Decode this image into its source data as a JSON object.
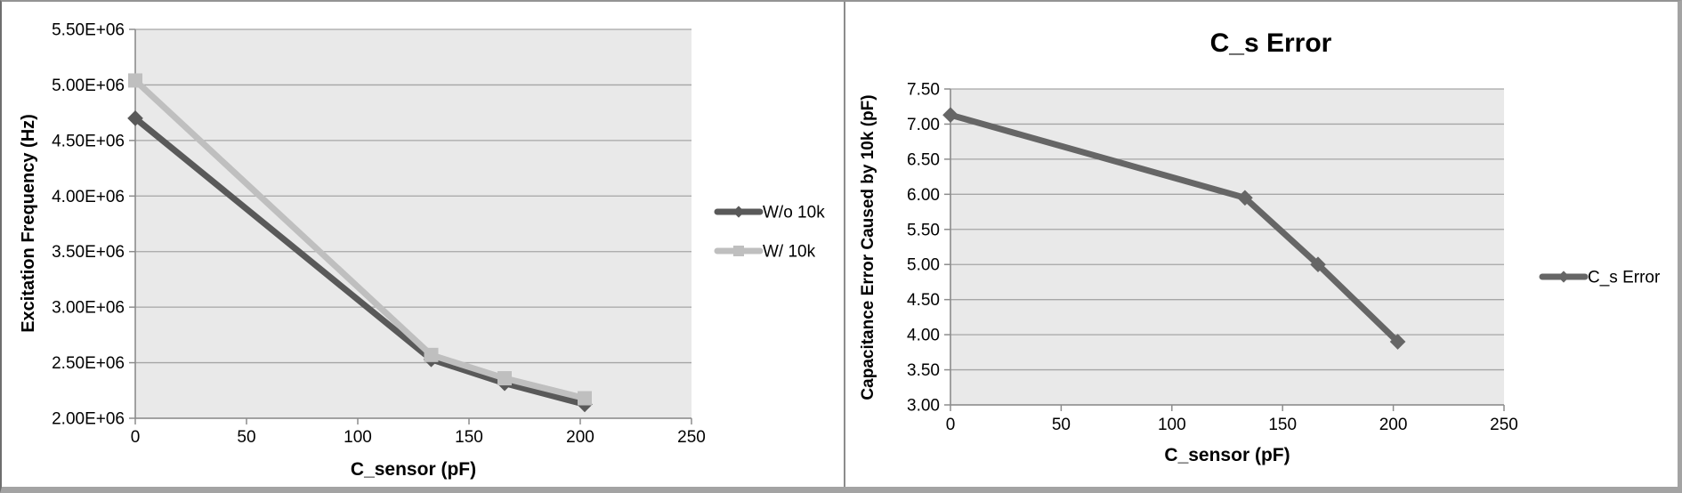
{
  "frame": {
    "background": "#FFFFFF",
    "divider_color": "#8C8C8C",
    "border_color": "#A3A3A3"
  },
  "chart_data": [
    {
      "type": "line",
      "title": "",
      "xlabel": "C_sensor (pF)",
      "ylabel": "Excitation Frequency (Hz)",
      "x": [
        0,
        133,
        166,
        202
      ],
      "xlim": [
        0,
        250
      ],
      "ylim": [
        2000000,
        5500000
      ],
      "x_tick_labels": [
        "0",
        "50",
        "100",
        "150",
        "200",
        "250"
      ],
      "y_tick_labels": [
        "5.50E+06",
        "5.00E+06",
        "4.50E+06",
        "4.00E+06",
        "3.50E+06",
        "3.00E+06",
        "2.50E+06",
        "2.00E+06"
      ],
      "grid": true,
      "legend_position": "right",
      "plot_bg": "#E9E9E9",
      "gridline_color": "#A6A6A6",
      "axis_color": "#8C8C8C",
      "series": [
        {
          "name": "W/o 10k",
          "marker": "diamond",
          "color": "#595959",
          "values": [
            4700000,
            2530000,
            2315000,
            2125000
          ]
        },
        {
          "name": "W/ 10k",
          "marker": "square",
          "color": "#BFBFBF",
          "values": [
            5040000,
            2570000,
            2360000,
            2180000
          ]
        }
      ]
    },
    {
      "type": "line",
      "title": "C_s Error",
      "xlabel": "C_sensor (pF)",
      "ylabel": "Capacitance Error Caused by 10k (pF)",
      "x": [
        0,
        133,
        166,
        202
      ],
      "xlim": [
        0,
        250
      ],
      "ylim": [
        3.0,
        7.5
      ],
      "x_tick_labels": [
        "0",
        "50",
        "100",
        "150",
        "200",
        "250"
      ],
      "y_tick_labels": [
        "7.50",
        "7.00",
        "6.50",
        "6.00",
        "5.50",
        "5.00",
        "4.50",
        "4.00",
        "3.50",
        "3.00"
      ],
      "grid": true,
      "legend_position": "right",
      "plot_bg": "#E9E9E9",
      "gridline_color": "#A6A6A6",
      "axis_color": "#8C8C8C",
      "series": [
        {
          "name": "C_s Error",
          "marker": "diamond",
          "color": "#666666",
          "values": [
            7.13,
            5.95,
            5.0,
            3.9
          ]
        }
      ]
    }
  ]
}
